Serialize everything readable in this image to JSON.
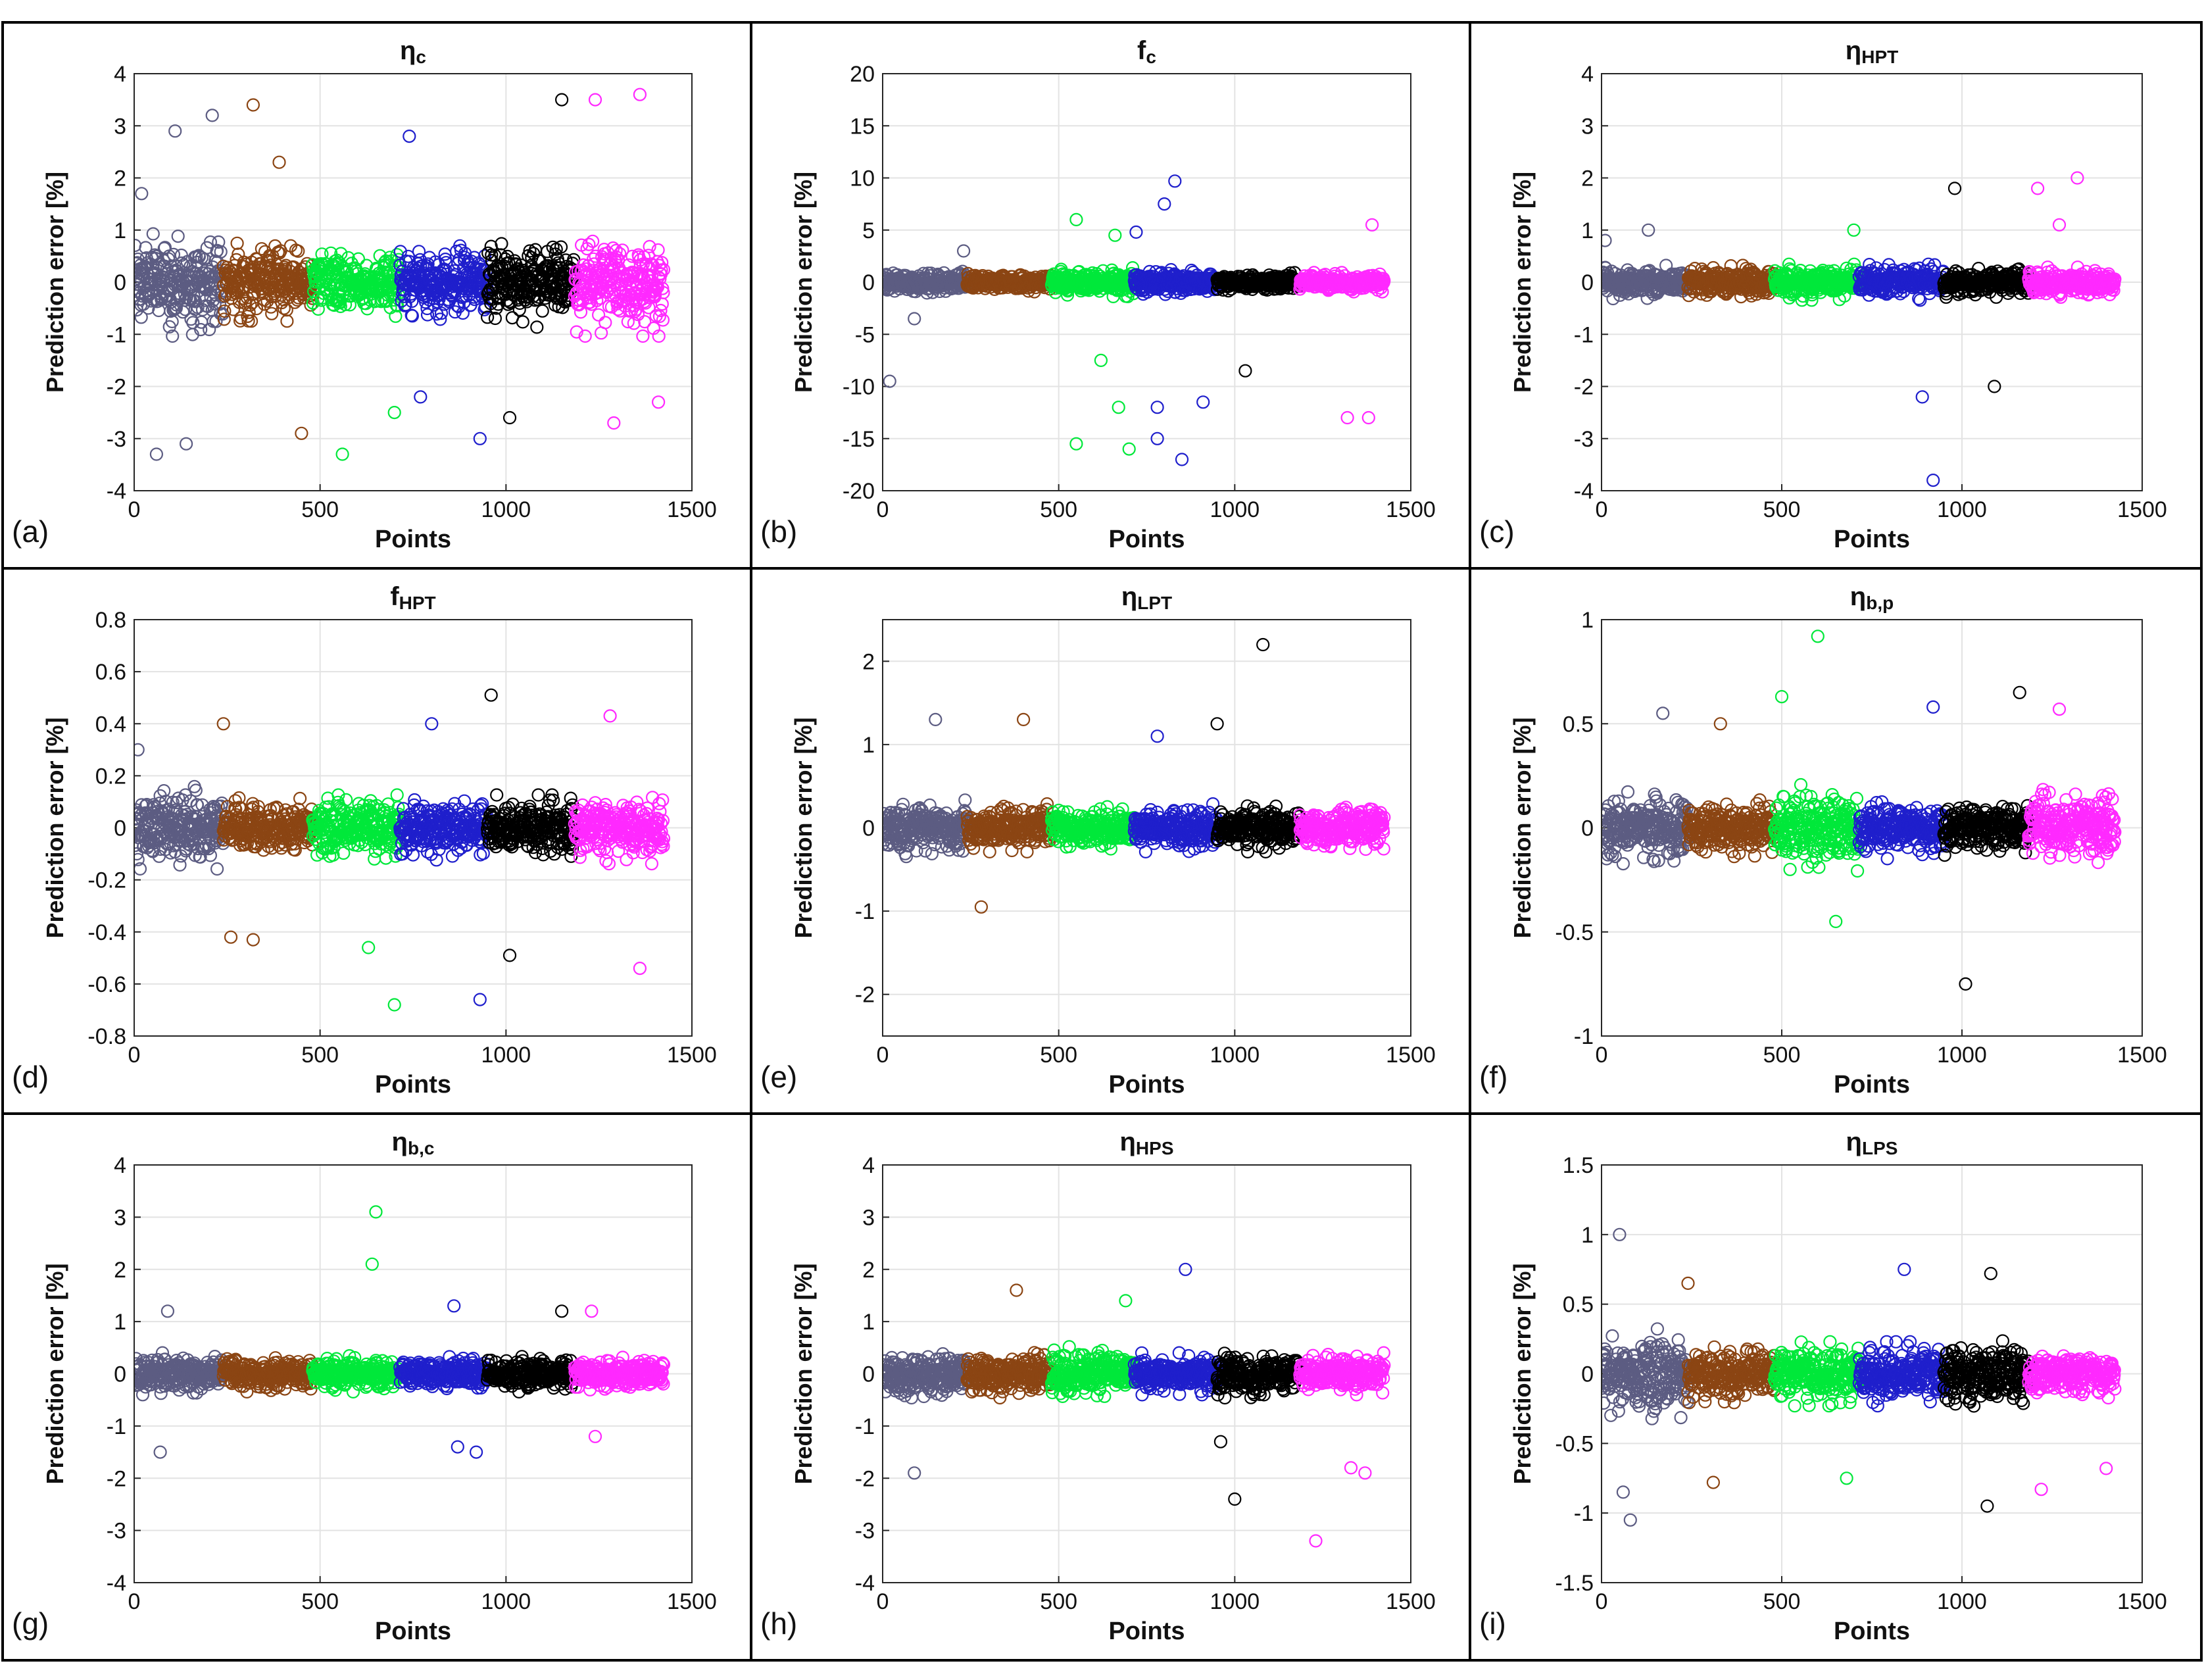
{
  "figure": {
    "shared_xlabel": "Points",
    "shared_ylabel": "Prediction error [%]",
    "series_colors": [
      "#5c5c82",
      "#8b4513",
      "#00e83a",
      "#1f1fcc",
      "#000000",
      "#ff29ff"
    ],
    "segment_edges": [
      0,
      240,
      480,
      715,
      950,
      1185,
      1425
    ],
    "x_ticks": [
      "0",
      "500",
      "1000",
      "1500"
    ]
  },
  "chart_data": [
    {
      "panel": "(a)",
      "type": "scatter",
      "title_main": "η",
      "title_sub": "c",
      "xlabel": "Points",
      "ylabel": "Prediction error [%]",
      "xlim": [
        0,
        1500
      ],
      "ylim": [
        -4,
        4
      ],
      "yticks": [
        "-4",
        "-3",
        "-2",
        "-1",
        "0",
        "1",
        "2",
        "3",
        "4"
      ],
      "spread": [
        0.9,
        0.65,
        0.6,
        0.65,
        0.75,
        0.9
      ],
      "outliers": [
        [
          20,
          1.7
        ],
        [
          60,
          -3.3
        ],
        [
          110,
          2.9
        ],
        [
          140,
          -3.1
        ],
        [
          210,
          3.2
        ],
        [
          320,
          3.4
        ],
        [
          390,
          2.3
        ],
        [
          450,
          -2.9
        ],
        [
          560,
          -3.3
        ],
        [
          700,
          -2.5
        ],
        [
          740,
          2.8
        ],
        [
          770,
          -2.2
        ],
        [
          930,
          -3.0
        ],
        [
          1010,
          -2.6
        ],
        [
          1150,
          3.5
        ],
        [
          1240,
          3.5
        ],
        [
          1360,
          3.6
        ],
        [
          1290,
          -2.7
        ],
        [
          1410,
          -2.3
        ]
      ]
    },
    {
      "panel": "(b)",
      "type": "scatter",
      "title_main": "f",
      "title_sub": "c",
      "xlabel": "Points",
      "ylabel": "Prediction error [%]",
      "xlim": [
        0,
        1500
      ],
      "ylim": [
        -20,
        20
      ],
      "yticks": [
        "-20",
        "-15",
        "-10",
        "-5",
        "0",
        "5",
        "10",
        "15",
        "20"
      ],
      "spread": [
        0.9,
        0.8,
        1.2,
        1.1,
        0.8,
        0.8
      ],
      "outliers": [
        [
          20,
          -9.5
        ],
        [
          90,
          -3.5
        ],
        [
          230,
          3.0
        ],
        [
          550,
          6.0
        ],
        [
          550,
          -15.5
        ],
        [
          620,
          -7.5
        ],
        [
          660,
          4.5
        ],
        [
          670,
          -12.0
        ],
        [
          700,
          -16.0
        ],
        [
          720,
          4.8
        ],
        [
          780,
          -12.0
        ],
        [
          780,
          -15.0
        ],
        [
          800,
          7.5
        ],
        [
          830,
          9.7
        ],
        [
          850,
          -17.0
        ],
        [
          910,
          -11.5
        ],
        [
          1030,
          -8.5
        ],
        [
          1320,
          -13.0
        ],
        [
          1380,
          -13.0
        ],
        [
          1390,
          5.5
        ]
      ]
    },
    {
      "panel": "(c)",
      "type": "scatter",
      "title_main": "η",
      "title_sub": "HPT",
      "xlabel": "Points",
      "ylabel": "Prediction error [%]",
      "xlim": [
        0,
        1500
      ],
      "ylim": [
        -4,
        4
      ],
      "yticks": [
        "-4",
        "-3",
        "-2",
        "-1",
        "0",
        "1",
        "2",
        "3",
        "4"
      ],
      "spread": [
        0.28,
        0.28,
        0.3,
        0.3,
        0.25,
        0.25
      ],
      "outliers": [
        [
          10,
          0.8
        ],
        [
          130,
          1.0
        ],
        [
          700,
          1.0
        ],
        [
          890,
          -2.2
        ],
        [
          920,
          -3.8
        ],
        [
          980,
          1.8
        ],
        [
          1090,
          -2.0
        ],
        [
          1210,
          1.8
        ],
        [
          1270,
          1.1
        ],
        [
          1320,
          2.0
        ]
      ]
    },
    {
      "panel": "(d)",
      "type": "scatter",
      "title_main": "f",
      "title_sub": "HPT",
      "xlabel": "Points",
      "ylabel": "Prediction error [%]",
      "xlim": [
        0,
        1500
      ],
      "ylim": [
        -0.8,
        0.8
      ],
      "yticks": [
        "-0.8",
        "-0.6",
        "-0.4",
        "-0.2",
        "0",
        "0.2",
        "0.4",
        "0.6",
        "0.8"
      ],
      "spread": [
        0.14,
        0.1,
        0.11,
        0.11,
        0.11,
        0.12
      ],
      "outliers": [
        [
          10,
          0.3
        ],
        [
          240,
          0.4
        ],
        [
          260,
          -0.42
        ],
        [
          320,
          -0.43
        ],
        [
          630,
          -0.46
        ],
        [
          700,
          -0.68
        ],
        [
          800,
          0.4
        ],
        [
          930,
          -0.66
        ],
        [
          960,
          0.51
        ],
        [
          1010,
          -0.49
        ],
        [
          1280,
          0.43
        ],
        [
          1360,
          -0.54
        ]
      ]
    },
    {
      "panel": "(e)",
      "type": "scatter",
      "title_main": "η",
      "title_sub": "LPT",
      "xlabel": "Points",
      "ylabel": "Prediction error [%]",
      "xlim": [
        0,
        1500
      ],
      "ylim": [
        -2.5,
        2.5
      ],
      "yticks": [
        "-2",
        "-1",
        "0",
        "1",
        "2"
      ],
      "spread": [
        0.3,
        0.25,
        0.22,
        0.25,
        0.25,
        0.25
      ],
      "outliers": [
        [
          150,
          1.3
        ],
        [
          280,
          -0.95
        ],
        [
          400,
          1.3
        ],
        [
          1080,
          2.2
        ],
        [
          950,
          1.25
        ],
        [
          780,
          1.1
        ]
      ]
    },
    {
      "panel": "(f)",
      "type": "scatter",
      "title_main": "η",
      "title_sub": "b,p",
      "xlabel": "Points",
      "ylabel": "Prediction error [%]",
      "xlim": [
        0,
        1500
      ],
      "ylim": [
        -1,
        1
      ],
      "yticks": [
        "-1",
        "-0.5",
        "0",
        "0.5",
        "1"
      ],
      "spread": [
        0.15,
        0.12,
        0.18,
        0.13,
        0.12,
        0.16
      ],
      "outliers": [
        [
          170,
          0.55
        ],
        [
          330,
          0.5
        ],
        [
          500,
          0.63
        ],
        [
          600,
          0.92
        ],
        [
          650,
          -0.45
        ],
        [
          920,
          0.58
        ],
        [
          1010,
          -0.75
        ],
        [
          1160,
          0.65
        ],
        [
          1270,
          0.57
        ]
      ]
    },
    {
      "panel": "(g)",
      "type": "scatter",
      "title_main": "η",
      "title_sub": "b,c",
      "xlabel": "Points",
      "ylabel": "Prediction error [%]",
      "xlim": [
        0,
        1500
      ],
      "ylim": [
        -4,
        4
      ],
      "yticks": [
        "-4",
        "-3",
        "-2",
        "-1",
        "0",
        "1",
        "2",
        "3",
        "4"
      ],
      "spread": [
        0.35,
        0.3,
        0.3,
        0.3,
        0.3,
        0.3
      ],
      "outliers": [
        [
          70,
          -1.5
        ],
        [
          90,
          1.2
        ],
        [
          640,
          2.1
        ],
        [
          650,
          3.1
        ],
        [
          860,
          1.3
        ],
        [
          870,
          -1.4
        ],
        [
          920,
          -1.5
        ],
        [
          1150,
          1.2
        ],
        [
          1230,
          1.2
        ],
        [
          1240,
          -1.2
        ]
      ]
    },
    {
      "panel": "(h)",
      "type": "scatter",
      "title_main": "η",
      "title_sub": "HPS",
      "xlabel": "Points",
      "ylabel": "Prediction error [%]",
      "xlim": [
        0,
        1500
      ],
      "ylim": [
        -4,
        4
      ],
      "yticks": [
        "-4",
        "-3",
        "-2",
        "-1",
        "0",
        "1",
        "2",
        "3",
        "4"
      ],
      "spread": [
        0.4,
        0.4,
        0.45,
        0.35,
        0.4,
        0.35
      ],
      "outliers": [
        [
          90,
          -1.9
        ],
        [
          380,
          1.6
        ],
        [
          690,
          1.4
        ],
        [
          860,
          2.0
        ],
        [
          960,
          -1.3
        ],
        [
          1000,
          -2.4
        ],
        [
          1230,
          -3.2
        ],
        [
          1330,
          -1.8
        ],
        [
          1370,
          -1.9
        ]
      ]
    },
    {
      "panel": "(i)",
      "type": "scatter",
      "title_main": "η",
      "title_sub": "LPS",
      "xlabel": "Points",
      "ylabel": "Prediction error [%]",
      "xlim": [
        0,
        1500
      ],
      "ylim": [
        -1.5,
        1.5
      ],
      "yticks": [
        "-1.5",
        "-1",
        "-0.5",
        "0",
        "0.5",
        "1",
        "1.5"
      ],
      "spread": [
        0.28,
        0.18,
        0.2,
        0.2,
        0.22,
        0.15
      ],
      "outliers": [
        [
          50,
          1.0
        ],
        [
          60,
          -0.85
        ],
        [
          80,
          -1.05
        ],
        [
          240,
          0.65
        ],
        [
          310,
          -0.78
        ],
        [
          680,
          -0.75
        ],
        [
          840,
          0.75
        ],
        [
          1070,
          -0.95
        ],
        [
          1080,
          0.72
        ],
        [
          1220,
          -0.83
        ],
        [
          1400,
          -0.68
        ]
      ]
    }
  ]
}
